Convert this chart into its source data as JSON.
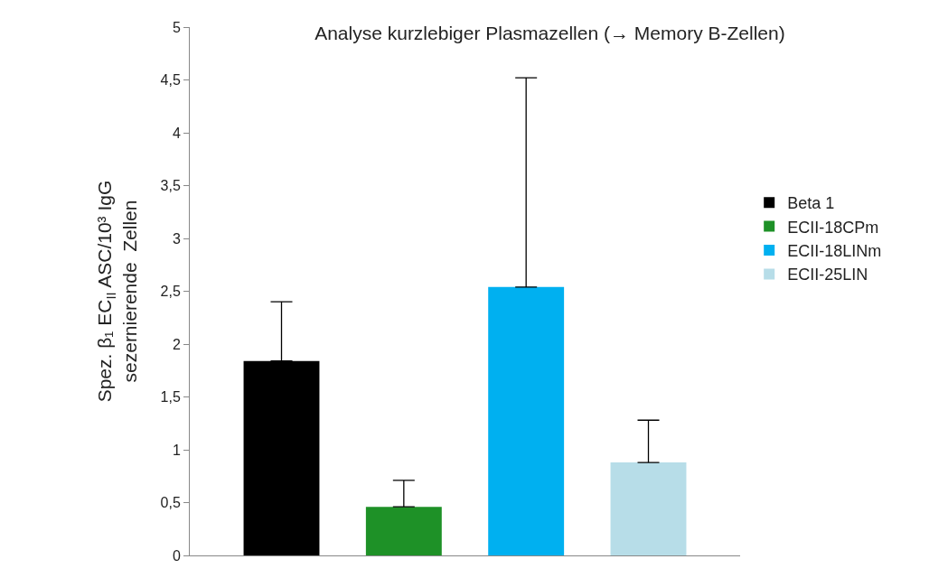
{
  "chart_data": {
    "type": "bar",
    "title": "Analyse kurzlebiger Plasmazellen (→ Memory B-Zellen)",
    "ylabel": "Spez. β₁ EC$_{II}$ ASC/10³ IgG\nsezernierende  Zellen",
    "categories": [
      null,
      null,
      null,
      null
    ],
    "series": [
      {
        "name": "Beta 1",
        "color": "#000000",
        "values": [
          1.84,
          null,
          null,
          null
        ],
        "errors": [
          [
            1.84,
            2.4
          ],
          null,
          null,
          null
        ]
      },
      {
        "name": "ECII-18CPm",
        "color": "#1e9127",
        "values": [
          null,
          0.46,
          null,
          null
        ],
        "errors": [
          null,
          [
            0.46,
            0.71
          ],
          null,
          null
        ]
      },
      {
        "name": "ECII-18LINm",
        "color": "#00b0f0",
        "values": [
          null,
          null,
          2.54,
          null
        ],
        "errors": [
          null,
          null,
          [
            2.54,
            4.52
          ],
          null
        ]
      },
      {
        "name": "ECII-25LIN",
        "color": "#b7dde8",
        "values": [
          null,
          null,
          null,
          0.88
        ],
        "errors": [
          null,
          null,
          null,
          [
            0.88,
            1.28
          ]
        ]
      }
    ],
    "ylim": [
      0,
      5
    ],
    "yticks": [
      0,
      {
        "value": 0.5,
        "label": "0,5"
      },
      1,
      {
        "value": 1.5,
        "label": "1,5"
      },
      2,
      {
        "value": 2.5,
        "label": "2,5"
      },
      3,
      {
        "value": 3.5,
        "label": "3,5"
      },
      4,
      {
        "value": 4.5,
        "label": "4,5"
      },
      5
    ],
    "grid": false,
    "legend": "right"
  }
}
